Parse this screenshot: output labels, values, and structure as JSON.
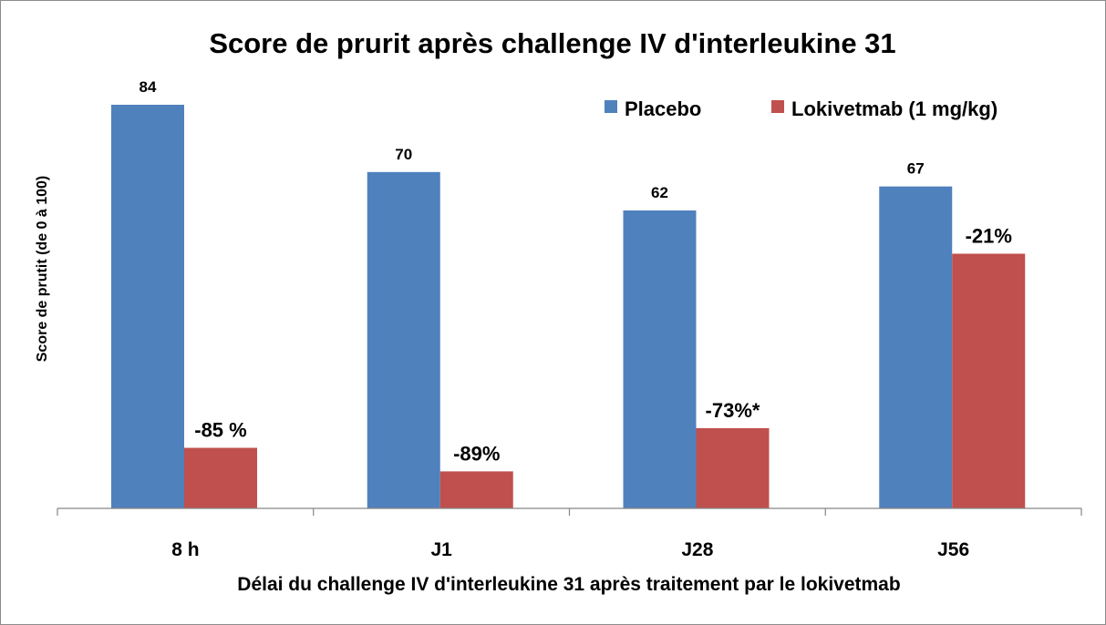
{
  "chart_data": {
    "type": "bar",
    "title": "Score de prurit après challenge IV d'interleukine 31",
    "xlabel": "Délai du challenge IV d'interleukine 31 après traitement par le lokivetmab",
    "ylabel": "Score de prutit (de 0 à 100)",
    "categories": [
      "8 h",
      "J1",
      "J28",
      "J56"
    ],
    "ylim": [
      0,
      100
    ],
    "grid": false,
    "legend_position": "top-right",
    "series": [
      {
        "name": "Placebo",
        "color": "#4f81bd",
        "values": [
          84,
          70,
          62,
          67
        ],
        "labels": [
          "84",
          "70",
          "62",
          "67"
        ]
      },
      {
        "name": "Lokivetmab (1 mg/kg)",
        "color": "#c0504d",
        "values": [
          12.6,
          7.7,
          16.7,
          53
        ],
        "labels": [
          "-85 %",
          "-89%",
          "-73%*",
          "-21%"
        ]
      }
    ]
  }
}
